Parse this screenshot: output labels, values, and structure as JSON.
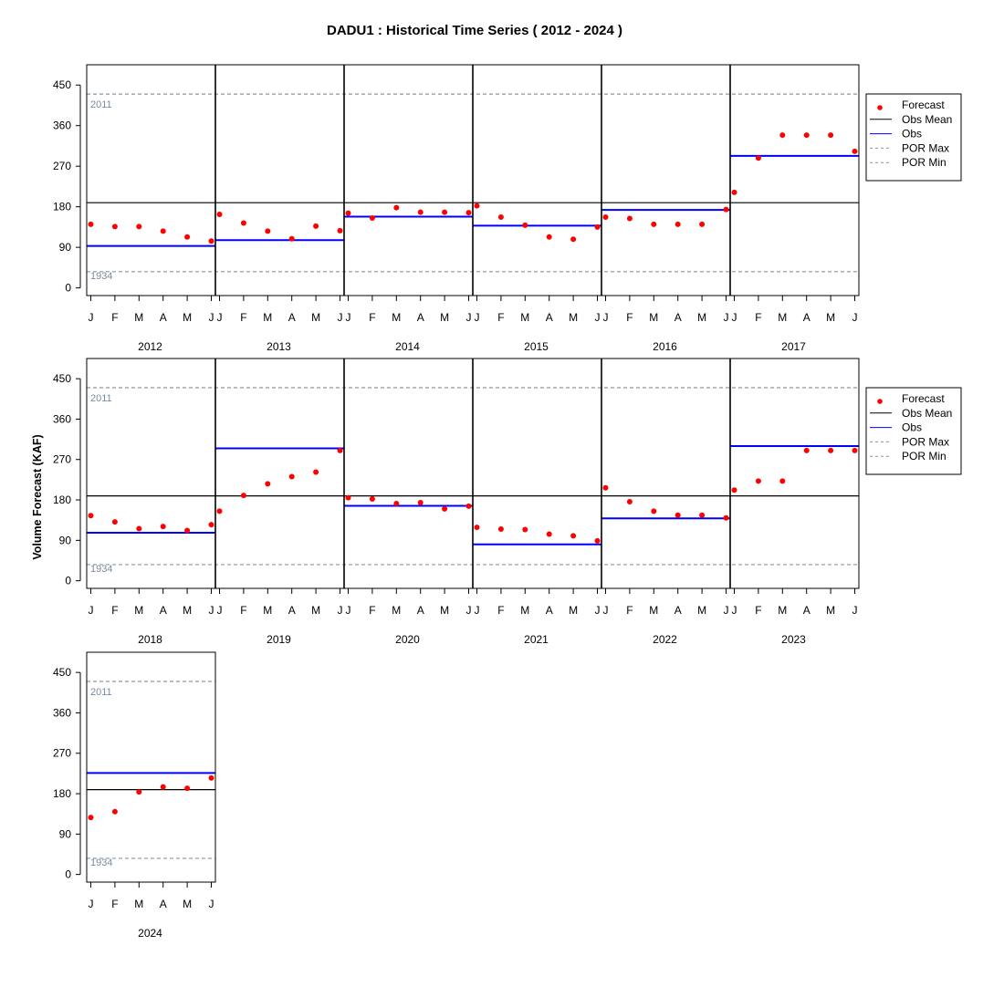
{
  "chart_data": {
    "type": "scatter",
    "title": "DADU1 : Historical Time Series ( 2012 - 2024 )",
    "ylabel": "Volume Forecast (KAF)",
    "xlabel": "",
    "ylim": [
      -17,
      495
    ],
    "yticks": [
      0,
      90,
      180,
      270,
      360,
      450
    ],
    "months": [
      "J",
      "F",
      "M",
      "A",
      "M",
      "J"
    ],
    "obs_mean": 189,
    "por_max": {
      "value": 430,
      "label": "2011"
    },
    "por_min": {
      "value": 36,
      "label": "1934"
    },
    "legend": {
      "placement": "right",
      "entries": [
        "Forecast",
        "Obs Mean",
        "Obs",
        "POR Max",
        "POR Min"
      ]
    },
    "colors": {
      "forecast": "#ff0000",
      "obs": "#0000ff",
      "obs_mean": "#000000",
      "por": "#8a94a6",
      "por_label": "#7a8aa0"
    },
    "years": [
      {
        "year": "2012",
        "obs": 93,
        "forecast": [
          141,
          136,
          136,
          126,
          113,
          104
        ]
      },
      {
        "year": "2013",
        "obs": 106,
        "forecast": [
          163,
          144,
          126,
          109,
          137,
          127
        ]
      },
      {
        "year": "2014",
        "obs": 158,
        "forecast": [
          166,
          155,
          178,
          168,
          168,
          167
        ]
      },
      {
        "year": "2015",
        "obs": 138,
        "forecast": [
          182,
          157,
          139,
          113,
          108,
          135
        ]
      },
      {
        "year": "2016",
        "obs": 173,
        "forecast": [
          157,
          154,
          141,
          141,
          141,
          174
        ]
      },
      {
        "year": "2017",
        "obs": 293,
        "forecast": [
          212,
          288,
          339,
          339,
          339,
          303
        ]
      },
      {
        "year": "2018",
        "obs": 107,
        "forecast": [
          145,
          131,
          116,
          121,
          112,
          125
        ]
      },
      {
        "year": "2019",
        "obs": 295,
        "forecast": [
          155,
          190,
          216,
          232,
          242,
          290
        ]
      },
      {
        "year": "2020",
        "obs": 167,
        "forecast": [
          185,
          182,
          172,
          174,
          160,
          166
        ]
      },
      {
        "year": "2021",
        "obs": 81,
        "forecast": [
          119,
          115,
          114,
          104,
          100,
          89
        ]
      },
      {
        "year": "2022",
        "obs": 139,
        "forecast": [
          207,
          176,
          155,
          146,
          146,
          140
        ]
      },
      {
        "year": "2023",
        "obs": 300,
        "forecast": [
          202,
          222,
          222,
          290,
          290,
          290
        ]
      },
      {
        "year": "2024",
        "obs": 226,
        "forecast": [
          127,
          140,
          184,
          195,
          192,
          215
        ]
      }
    ]
  }
}
